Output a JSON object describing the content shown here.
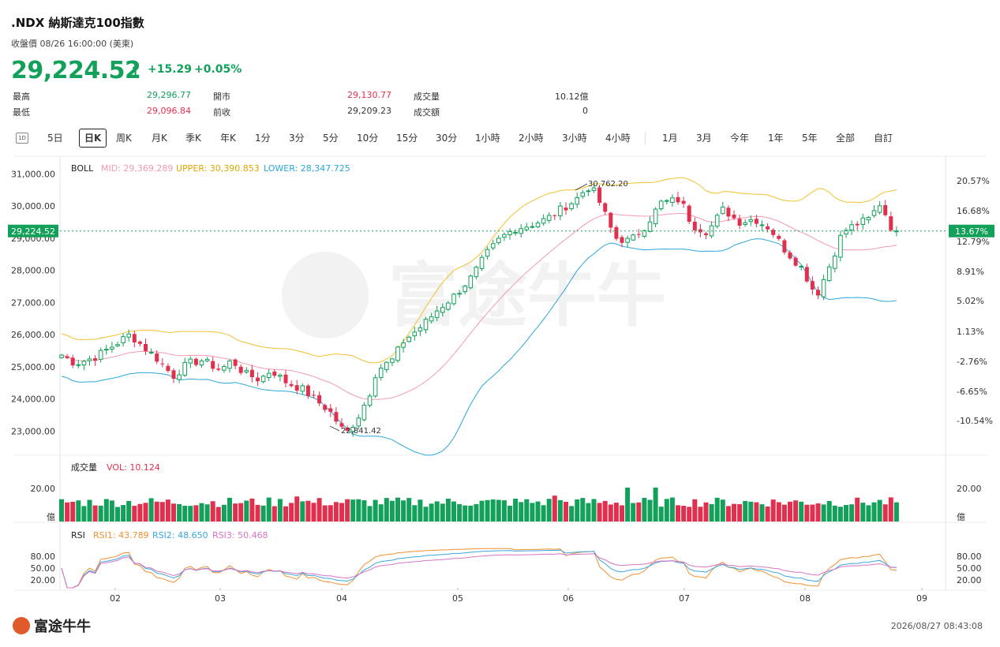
{
  "header": {
    "title": ".NDX  納斯達克100指數",
    "subtitle": "收盤價 08/26 16:00:00 (美東)",
    "price": "29,224.52",
    "change": "+15.29",
    "change_pct": "+0.05%",
    "arrow": "↑"
  },
  "quote": {
    "high_label": "最高",
    "high": "29,296.77",
    "low_label": "最低",
    "low": "29,096.84",
    "open_label": "開市",
    "open": "29,130.77",
    "prev_label": "前收",
    "prev": "29,209.23",
    "vol_label": "成交量",
    "vol": "10.12億",
    "amt_label": "成交額",
    "amt": "0"
  },
  "toolbar": {
    "icon_label": "1D",
    "tabs": [
      "5日",
      "日K",
      "周K",
      "月K",
      "季K",
      "年K",
      "1分",
      "3分",
      "5分",
      "10分",
      "15分",
      "30分",
      "1小時",
      "2小時",
      "3小時",
      "4小時",
      "1月",
      "3月",
      "今年",
      "1年",
      "5年",
      "全部",
      "自訂"
    ],
    "selected": "日K"
  },
  "chart_data": [
    {
      "type": "candlestick",
      "title": "BOLL",
      "indicators": {
        "mid_label": "MID: 29,369.289",
        "upper_label": "UPPER: 30,390.853",
        "lower_label": "LOWER: 28,347.725"
      },
      "ylim": [
        22300,
        31500
      ],
      "y_ticks": [
        "31,000.00",
        "30,000.00",
        "29,000.00",
        "28,000.00",
        "27,000.00",
        "26,000.00",
        "25,000.00",
        "24,000.00",
        "23,000.00"
      ],
      "y_tick_values": [
        31000,
        30000,
        29000,
        28000,
        27000,
        26000,
        25000,
        24000,
        23000
      ],
      "right_ticks": [
        "20.57%",
        "16.68%",
        "12.79%",
        "8.91%",
        "5.02%",
        "1.13%",
        "-2.76%",
        "-6.65%",
        "-10.54%"
      ],
      "last_price_tag": "29,224.52",
      "last_pct_tag": "13.67%",
      "annotations": {
        "high": "30,762.20",
        "low": "22,841.42"
      },
      "x_ticks": [
        "02",
        "03",
        "04",
        "05",
        "06",
        "07",
        "08",
        "09"
      ],
      "close_path": [
        [
          "01/21",
          25400
        ],
        [
          "01/24",
          25100
        ],
        [
          "01/28",
          25300
        ],
        [
          "02/01",
          25700
        ],
        [
          "02/05",
          26000
        ],
        [
          "02/09",
          25600
        ],
        [
          "02/13",
          25200
        ],
        [
          "02/17",
          24700
        ],
        [
          "02/21",
          25100
        ],
        [
          "02/25",
          25200
        ],
        [
          "03/01",
          24900
        ],
        [
          "03/04",
          25200
        ],
        [
          "03/07",
          24800
        ],
        [
          "03/11",
          24600
        ],
        [
          "03/14",
          24900
        ],
        [
          "03/18",
          24500
        ],
        [
          "03/22",
          24300
        ],
        [
          "03/25",
          24000
        ],
        [
          "03/29",
          23600
        ],
        [
          "04/02",
          22900
        ],
        [
          "04/05",
          23400
        ],
        [
          "04/08",
          24100
        ],
        [
          "04/10",
          24900
        ],
        [
          "04/14",
          25200
        ],
        [
          "04/17",
          25800
        ],
        [
          "04/22",
          26300
        ],
        [
          "04/26",
          26800
        ],
        [
          "04/30",
          27200
        ],
        [
          "05/05",
          27800
        ],
        [
          "05/09",
          28500
        ],
        [
          "05/13",
          29000
        ],
        [
          "05/17",
          29300
        ],
        [
          "05/21",
          29400
        ],
        [
          "05/26",
          29600
        ],
        [
          "05/30",
          29900
        ],
        [
          "06/03",
          30200
        ],
        [
          "06/06",
          30600
        ],
        [
          "06/08",
          30400
        ],
        [
          "06/11",
          29600
        ],
        [
          "06/13",
          29000
        ],
        [
          "06/17",
          28900
        ],
        [
          "06/21",
          29400
        ],
        [
          "06/25",
          30100
        ],
        [
          "06/30",
          30200
        ],
        [
          "07/03",
          29400
        ],
        [
          "07/07",
          29200
        ],
        [
          "07/11",
          29900
        ],
        [
          "07/15",
          29500
        ],
        [
          "07/19",
          29600
        ],
        [
          "07/23",
          29300
        ],
        [
          "07/27",
          28600
        ],
        [
          "07/31",
          28100
        ],
        [
          "08/04",
          27200
        ],
        [
          "08/07",
          28000
        ],
        [
          "08/11",
          29200
        ],
        [
          "08/14",
          29400
        ],
        [
          "08/18",
          29600
        ],
        [
          "08/21",
          30100
        ],
        [
          "08/24",
          29300
        ],
        [
          "08/26",
          29224.52
        ]
      ]
    },
    {
      "type": "bar",
      "title": "成交量",
      "value_label": "VOL: 10.124",
      "y_ticks": [
        "20.00",
        "億"
      ],
      "unit": "億"
    },
    {
      "type": "line",
      "title": "RSI",
      "series_labels": [
        "RSI1: 43.789",
        "RSI2: 48.650",
        "RSI3: 50.468"
      ],
      "y_ticks": [
        "80.00",
        "50.00",
        "20.00"
      ],
      "ylim": [
        0,
        100
      ]
    }
  ],
  "colors": {
    "up": "#12a05a",
    "down": "#e0304e",
    "upper": "#f2c12e",
    "mid": "#f29bb2",
    "lower": "#2ba7d8",
    "rsi1": "#f29030",
    "rsi2": "#3aa6dd",
    "rsi3": "#d874c4"
  },
  "footer": {
    "logo": "富途牛牛",
    "timestamp": "2026/08/27 08:43:08",
    "watermark": "富途牛牛"
  }
}
